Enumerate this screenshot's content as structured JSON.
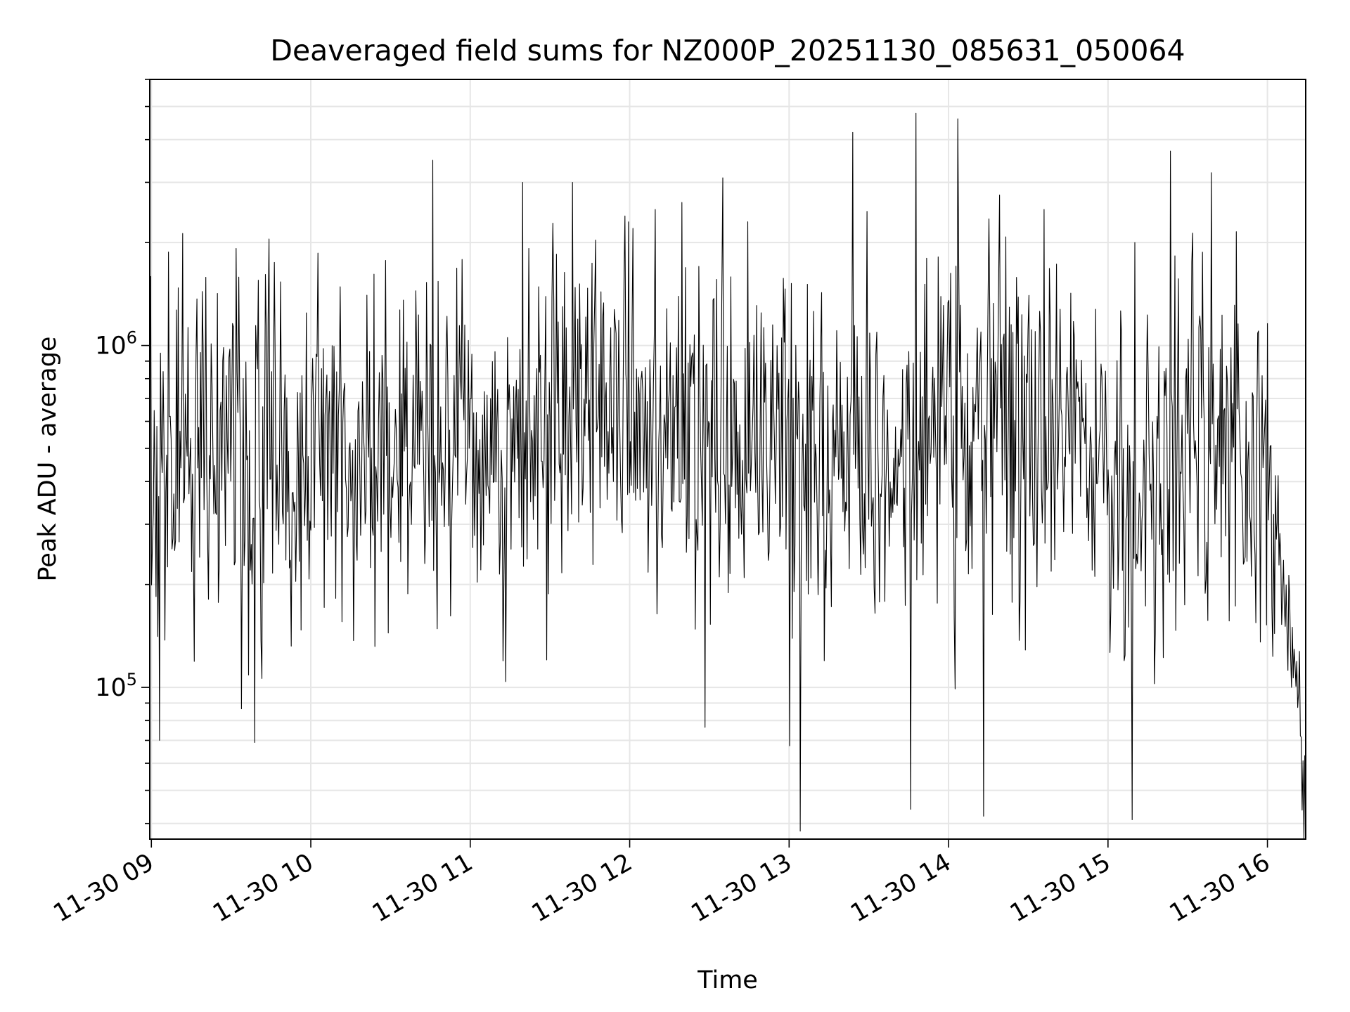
{
  "chart_data": {
    "type": "line",
    "title": "Deaveraged field sums for NZ000P_20251130_085631_050064",
    "xlabel": "Time",
    "ylabel": "Peak ADU - average",
    "yscale": "log",
    "ylim": [
      36000,
      6000000
    ],
    "y_major_ticks": [
      {
        "value": 100000,
        "base": "10",
        "exp": "5"
      },
      {
        "value": 1000000,
        "base": "10",
        "exp": "6"
      }
    ],
    "xlim_hours": [
      8.99,
      16.24
    ],
    "x_ticks": [
      {
        "hour": 9,
        "label": "11-30 09"
      },
      {
        "hour": 10,
        "label": "11-30 10"
      },
      {
        "hour": 11,
        "label": "11-30 11"
      },
      {
        "hour": 12,
        "label": "11-30 12"
      },
      {
        "hour": 13,
        "label": "11-30 13"
      },
      {
        "hour": 14,
        "label": "11-30 14"
      },
      {
        "hour": 15,
        "label": "11-30 15"
      },
      {
        "hour": 16,
        "label": "11-30 16"
      }
    ],
    "grid": true,
    "series": [
      {
        "name": "Deaveraged field sum",
        "color": "#000000",
        "n_points": 1300,
        "t_start_hour": 8.99,
        "t_end_hour": 16.24,
        "typical_level_profile": [
          {
            "hour": 9.0,
            "value": 480000
          },
          {
            "hour": 9.5,
            "value": 520000
          },
          {
            "hour": 10.0,
            "value": 560000
          },
          {
            "hour": 10.5,
            "value": 480000
          },
          {
            "hour": 11.0,
            "value": 500000
          },
          {
            "hour": 11.5,
            "value": 580000
          },
          {
            "hour": 12.0,
            "value": 680000
          },
          {
            "hour": 12.5,
            "value": 470000
          },
          {
            "hour": 13.0,
            "value": 430000
          },
          {
            "hour": 13.5,
            "value": 420000
          },
          {
            "hour": 14.0,
            "value": 620000
          },
          {
            "hour": 14.5,
            "value": 520000
          },
          {
            "hour": 15.0,
            "value": 420000
          },
          {
            "hour": 15.1,
            "value": 320000
          },
          {
            "hour": 15.5,
            "value": 500000
          },
          {
            "hour": 16.0,
            "value": 480000
          },
          {
            "hour": 16.1,
            "value": 200000
          },
          {
            "hour": 16.24,
            "value": 55000
          }
        ],
        "notable_points": [
          {
            "hour": 13.4,
            "value": 4200000
          },
          {
            "hour": 14.06,
            "value": 4600000
          },
          {
            "hour": 15.39,
            "value": 3700000
          },
          {
            "hour": 15.65,
            "value": 3200000
          },
          {
            "hour": 11.33,
            "value": 3000000
          },
          {
            "hour": 11.64,
            "value": 3000000
          },
          {
            "hour": 12.16,
            "value": 2500000
          },
          {
            "hour": 12.74,
            "value": 2300000
          },
          {
            "hour": 14.6,
            "value": 2500000
          },
          {
            "hour": 15.17,
            "value": 2000000
          },
          {
            "hour": 13.07,
            "value": 38000
          },
          {
            "hour": 13.76,
            "value": 44000
          },
          {
            "hour": 14.22,
            "value": 42000
          },
          {
            "hour": 15.15,
            "value": 41000
          },
          {
            "hour": 9.65,
            "value": 69000
          },
          {
            "hour": 9.05,
            "value": 70000
          },
          {
            "hour": 16.23,
            "value": 36000
          }
        ]
      }
    ]
  }
}
